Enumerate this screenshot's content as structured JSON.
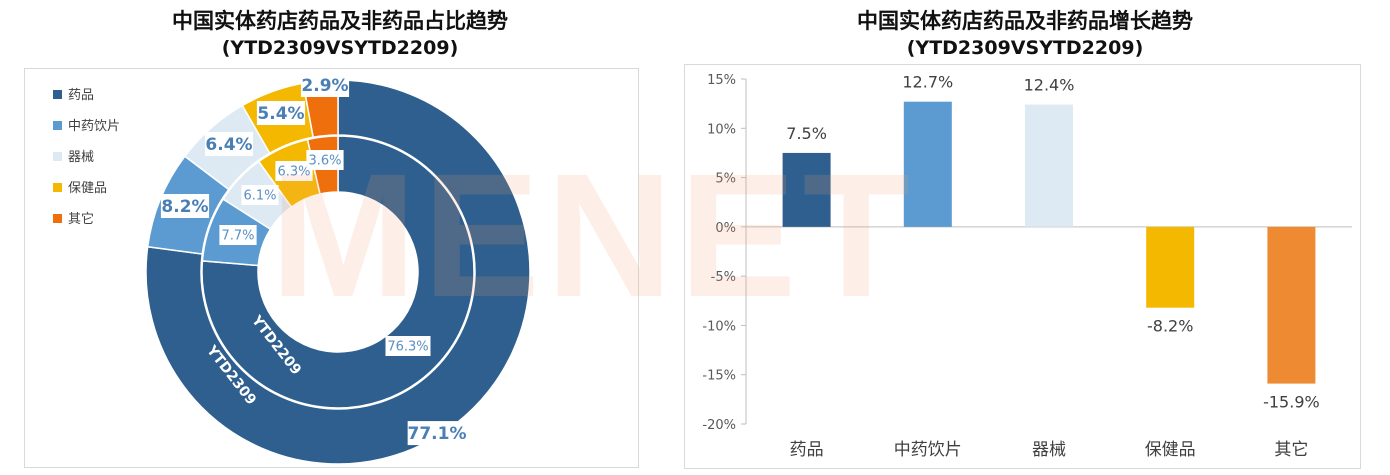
{
  "watermark": "MENET",
  "chart_data": [
    {
      "type": "donut",
      "title": "中国实体药店药品及非药品占比趋势",
      "subtitle": "(YTD2309VSYTD2209)",
      "legend": [
        "药品",
        "中药饮片",
        "器械",
        "保健品",
        "其它"
      ],
      "legend_position": "top-left",
      "colors": [
        "#2e5f8e",
        "#5b9bd1",
        "#dde9f3",
        "#f5b800",
        "#ee6f0b"
      ],
      "series": [
        {
          "name": "YTD2309",
          "ring": "outer",
          "values": [
            77.1,
            8.2,
            6.4,
            5.4,
            2.9
          ],
          "labels": [
            "77.1%",
            "8.2%",
            "6.4%",
            "5.4%",
            "2.9%"
          ]
        },
        {
          "name": "YTD2209",
          "ring": "inner",
          "values": [
            76.3,
            7.7,
            6.1,
            6.3,
            3.6
          ],
          "labels": [
            "76.3%",
            "7.7%",
            "6.1%",
            "6.3%",
            "3.6%"
          ]
        }
      ]
    },
    {
      "type": "bar",
      "title": "中国实体药店药品及非药品增长趋势",
      "subtitle": "(YTD2309VSYTD2209)",
      "categories": [
        "药品",
        "中药饮片",
        "器械",
        "保健品",
        "其它"
      ],
      "values": [
        7.5,
        12.7,
        12.4,
        -8.2,
        -15.9
      ],
      "value_labels": [
        "7.5%",
        "12.7%",
        "12.4%",
        "-8.2%",
        "-15.9%"
      ],
      "colors": [
        "#2e5f8e",
        "#5b9bd1",
        "#dde9f3",
        "#f5b800",
        "#ee8a32"
      ],
      "ylim": [
        -20,
        15
      ],
      "yticks": [
        15,
        10,
        5,
        0,
        -5,
        -10,
        -15,
        -20
      ],
      "ytick_labels": [
        "15%",
        "10%",
        "5%",
        "0%",
        "-5%",
        "-10%",
        "-15%",
        "-20%"
      ],
      "grid": false
    }
  ]
}
